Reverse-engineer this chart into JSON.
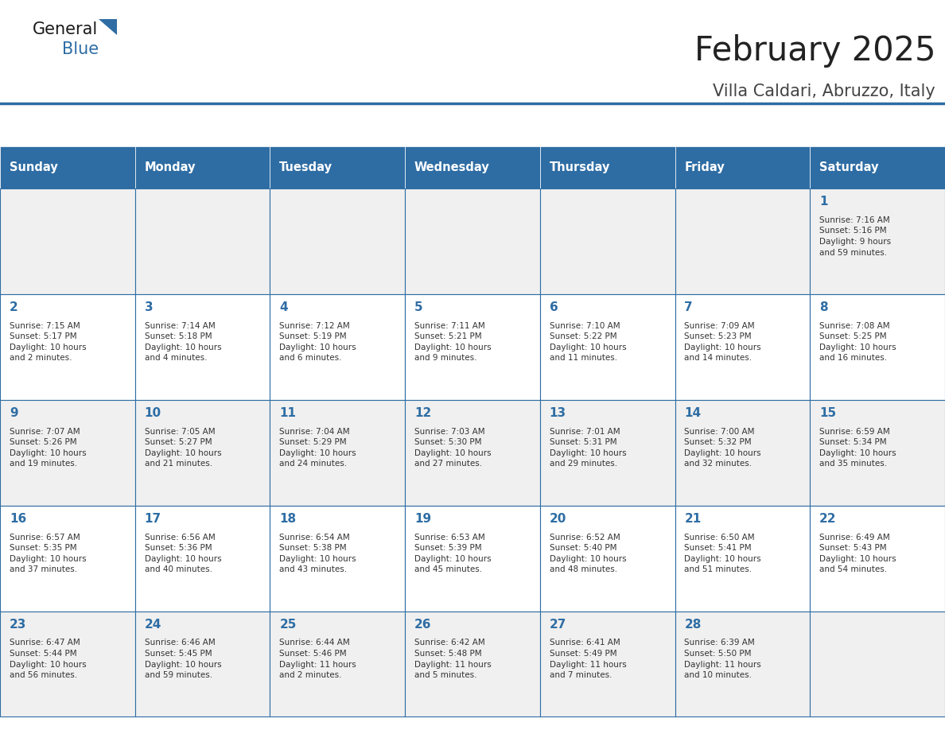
{
  "title": "February 2025",
  "subtitle": "Villa Caldari, Abruzzo, Italy",
  "header_bg": "#2E6DA4",
  "header_text_color": "#FFFFFF",
  "border_color": "#2E6DA4",
  "day_names": [
    "Sunday",
    "Monday",
    "Tuesday",
    "Wednesday",
    "Thursday",
    "Friday",
    "Saturday"
  ],
  "title_color": "#222222",
  "subtitle_color": "#444444",
  "day_number_color": "#2E6DA4",
  "info_color": "#333333",
  "calendar": [
    [
      null,
      null,
      null,
      null,
      null,
      null,
      {
        "day": 1,
        "sunrise": "7:16 AM",
        "sunset": "5:16 PM",
        "daylight": "9 hours\nand 59 minutes."
      }
    ],
    [
      {
        "day": 2,
        "sunrise": "7:15 AM",
        "sunset": "5:17 PM",
        "daylight": "10 hours\nand 2 minutes."
      },
      {
        "day": 3,
        "sunrise": "7:14 AM",
        "sunset": "5:18 PM",
        "daylight": "10 hours\nand 4 minutes."
      },
      {
        "day": 4,
        "sunrise": "7:12 AM",
        "sunset": "5:19 PM",
        "daylight": "10 hours\nand 6 minutes."
      },
      {
        "day": 5,
        "sunrise": "7:11 AM",
        "sunset": "5:21 PM",
        "daylight": "10 hours\nand 9 minutes."
      },
      {
        "day": 6,
        "sunrise": "7:10 AM",
        "sunset": "5:22 PM",
        "daylight": "10 hours\nand 11 minutes."
      },
      {
        "day": 7,
        "sunrise": "7:09 AM",
        "sunset": "5:23 PM",
        "daylight": "10 hours\nand 14 minutes."
      },
      {
        "day": 8,
        "sunrise": "7:08 AM",
        "sunset": "5:25 PM",
        "daylight": "10 hours\nand 16 minutes."
      }
    ],
    [
      {
        "day": 9,
        "sunrise": "7:07 AM",
        "sunset": "5:26 PM",
        "daylight": "10 hours\nand 19 minutes."
      },
      {
        "day": 10,
        "sunrise": "7:05 AM",
        "sunset": "5:27 PM",
        "daylight": "10 hours\nand 21 minutes."
      },
      {
        "day": 11,
        "sunrise": "7:04 AM",
        "sunset": "5:29 PM",
        "daylight": "10 hours\nand 24 minutes."
      },
      {
        "day": 12,
        "sunrise": "7:03 AM",
        "sunset": "5:30 PM",
        "daylight": "10 hours\nand 27 minutes."
      },
      {
        "day": 13,
        "sunrise": "7:01 AM",
        "sunset": "5:31 PM",
        "daylight": "10 hours\nand 29 minutes."
      },
      {
        "day": 14,
        "sunrise": "7:00 AM",
        "sunset": "5:32 PM",
        "daylight": "10 hours\nand 32 minutes."
      },
      {
        "day": 15,
        "sunrise": "6:59 AM",
        "sunset": "5:34 PM",
        "daylight": "10 hours\nand 35 minutes."
      }
    ],
    [
      {
        "day": 16,
        "sunrise": "6:57 AM",
        "sunset": "5:35 PM",
        "daylight": "10 hours\nand 37 minutes."
      },
      {
        "day": 17,
        "sunrise": "6:56 AM",
        "sunset": "5:36 PM",
        "daylight": "10 hours\nand 40 minutes."
      },
      {
        "day": 18,
        "sunrise": "6:54 AM",
        "sunset": "5:38 PM",
        "daylight": "10 hours\nand 43 minutes."
      },
      {
        "day": 19,
        "sunrise": "6:53 AM",
        "sunset": "5:39 PM",
        "daylight": "10 hours\nand 45 minutes."
      },
      {
        "day": 20,
        "sunrise": "6:52 AM",
        "sunset": "5:40 PM",
        "daylight": "10 hours\nand 48 minutes."
      },
      {
        "day": 21,
        "sunrise": "6:50 AM",
        "sunset": "5:41 PM",
        "daylight": "10 hours\nand 51 minutes."
      },
      {
        "day": 22,
        "sunrise": "6:49 AM",
        "sunset": "5:43 PM",
        "daylight": "10 hours\nand 54 minutes."
      }
    ],
    [
      {
        "day": 23,
        "sunrise": "6:47 AM",
        "sunset": "5:44 PM",
        "daylight": "10 hours\nand 56 minutes."
      },
      {
        "day": 24,
        "sunrise": "6:46 AM",
        "sunset": "5:45 PM",
        "daylight": "10 hours\nand 59 minutes."
      },
      {
        "day": 25,
        "sunrise": "6:44 AM",
        "sunset": "5:46 PM",
        "daylight": "11 hours\nand 2 minutes."
      },
      {
        "day": 26,
        "sunrise": "6:42 AM",
        "sunset": "5:48 PM",
        "daylight": "11 hours\nand 5 minutes."
      },
      {
        "day": 27,
        "sunrise": "6:41 AM",
        "sunset": "5:49 PM",
        "daylight": "11 hours\nand 7 minutes."
      },
      {
        "day": 28,
        "sunrise": "6:39 AM",
        "sunset": "5:50 PM",
        "daylight": "11 hours\nand 10 minutes."
      },
      null
    ]
  ]
}
